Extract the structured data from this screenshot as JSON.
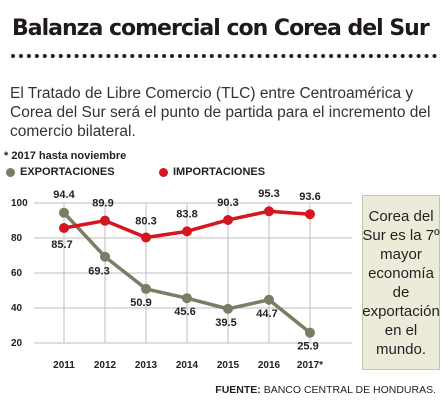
{
  "header": {
    "title": "Balanza comercial con Corea del Sur",
    "description": "El Tratado de Libre Comercio (TLC) entre Centroamérica y Corea del Sur será el punto de partida para el incremento del comercio bilateral.",
    "note": "* 2017 hasta noviembre"
  },
  "callout": {
    "text": "Corea del Sur es la 7º mayor economía de exportación en el mundo."
  },
  "source": {
    "label": "FUENTE:",
    "text": " BANCO CENTRAL DE HONDURAS."
  },
  "colors": {
    "exports": "#7c7b63",
    "imports": "#d5151f",
    "grid": "#bdbdbd",
    "callout_bg": "#ecebd9"
  },
  "chart_data": {
    "type": "line",
    "categories": [
      "2011",
      "2012",
      "2013",
      "2014",
      "2015",
      "2016",
      "2017*"
    ],
    "series": [
      {
        "name": "EXPORTACIONES",
        "values": [
          94.4,
          69.3,
          50.9,
          45.6,
          39.5,
          44.7,
          25.9
        ]
      },
      {
        "name": "IMPORTACIONES",
        "values": [
          85.7,
          89.9,
          80.3,
          83.8,
          90.3,
          95.3,
          93.6
        ]
      }
    ],
    "yticks": [
      20,
      40,
      60,
      80,
      100
    ],
    "ylim": [
      20,
      100
    ],
    "grid": true,
    "legend": "top-left"
  }
}
